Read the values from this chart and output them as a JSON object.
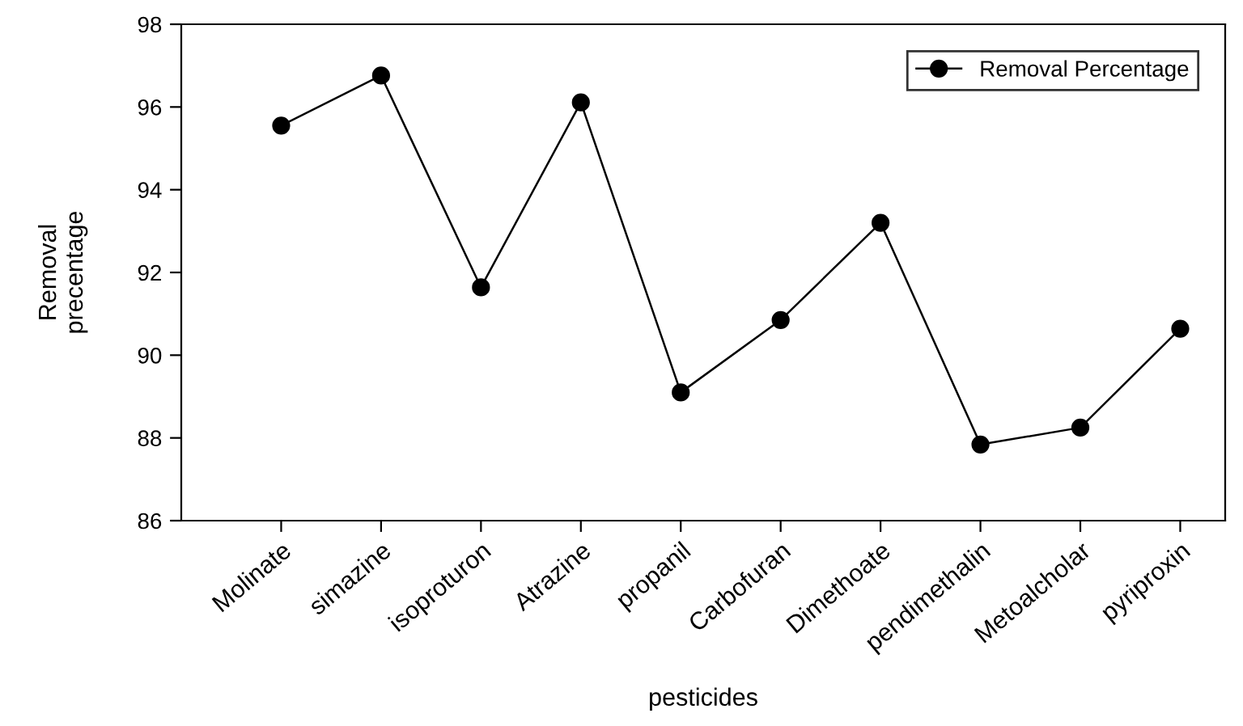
{
  "chart_data": {
    "type": "line",
    "xlabel": "pesticides",
    "ylabel": "Removal\nprecentage",
    "categories": [
      "Molinate",
      "simazine",
      "isoproturon",
      "Atrazine",
      "propanil",
      "Carbofuran",
      "Dimethoate",
      "pendimethalin",
      "Metoalcholar",
      "pyriproxin"
    ],
    "series": [
      {
        "name": "Removal Percentage",
        "color": "#000000",
        "values": [
          95.55,
          96.76,
          91.64,
          96.11,
          89.1,
          90.85,
          93.2,
          87.84,
          88.25,
          90.64
        ]
      }
    ],
    "ylim": [
      86,
      98
    ],
    "yticks": [
      86,
      88,
      90,
      92,
      94,
      96,
      98
    ],
    "grid": false,
    "legend": "top right",
    "marker": "circle",
    "line_style": "solid"
  }
}
